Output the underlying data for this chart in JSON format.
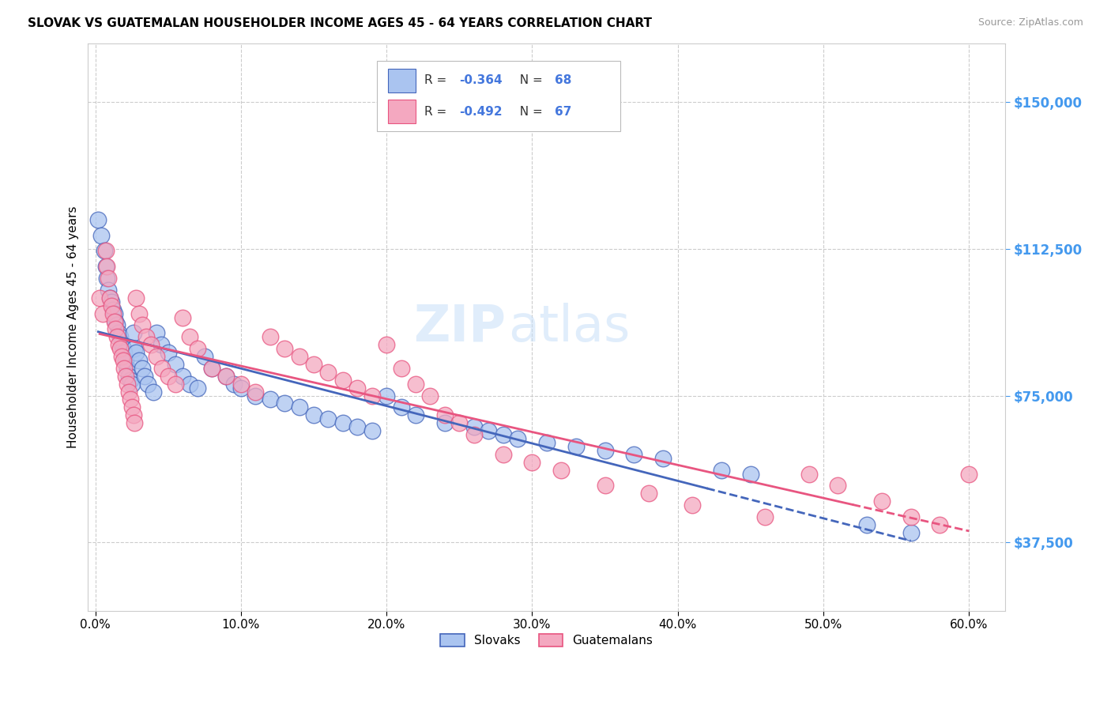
{
  "title": "SLOVAK VS GUATEMALAN HOUSEHOLDER INCOME AGES 45 - 64 YEARS CORRELATION CHART",
  "source": "Source: ZipAtlas.com",
  "ylabel": "Householder Income Ages 45 - 64 years",
  "xlabel_ticks": [
    "0.0%",
    "10.0%",
    "20.0%",
    "30.0%",
    "40.0%",
    "50.0%",
    "60.0%"
  ],
  "xlabel_vals": [
    0.0,
    0.1,
    0.2,
    0.3,
    0.4,
    0.5,
    0.6
  ],
  "yticks": [
    37500,
    75000,
    112500,
    150000
  ],
  "ytick_labels": [
    "$37,500",
    "$75,000",
    "$112,500",
    "$150,000"
  ],
  "xlim": [
    -0.005,
    0.625
  ],
  "ylim": [
    20000,
    165000
  ],
  "slovak_color": "#aac4f0",
  "guatemalan_color": "#f4a8c0",
  "slovak_line_color": "#4466bb",
  "guatemalan_line_color": "#e85580",
  "Slovak_R": "-0.364",
  "Slovak_N": "68",
  "Guatemalan_R": "-0.492",
  "Guatemalan_N": "67",
  "background_color": "#ffffff",
  "grid_color": "#cccccc",
  "watermark_zip": "ZIP",
  "watermark_atlas": "atlas",
  "legend_R_color": "#4466bb",
  "legend_N_color": "#4466bb",
  "slovak_x": [
    0.002,
    0.004,
    0.006,
    0.007,
    0.008,
    0.009,
    0.01,
    0.011,
    0.012,
    0.013,
    0.014,
    0.015,
    0.016,
    0.017,
    0.018,
    0.019,
    0.02,
    0.021,
    0.022,
    0.023,
    0.024,
    0.025,
    0.026,
    0.027,
    0.028,
    0.03,
    0.032,
    0.034,
    0.036,
    0.04,
    0.042,
    0.045,
    0.05,
    0.055,
    0.06,
    0.065,
    0.07,
    0.075,
    0.08,
    0.09,
    0.095,
    0.1,
    0.11,
    0.12,
    0.13,
    0.14,
    0.15,
    0.16,
    0.17,
    0.18,
    0.19,
    0.2,
    0.21,
    0.22,
    0.24,
    0.26,
    0.27,
    0.28,
    0.29,
    0.31,
    0.33,
    0.35,
    0.37,
    0.39,
    0.43,
    0.45,
    0.53,
    0.56
  ],
  "slovak_y": [
    120000,
    116000,
    112000,
    108000,
    105000,
    102000,
    100000,
    99000,
    97000,
    96000,
    94000,
    93000,
    91000,
    90000,
    88000,
    87000,
    86000,
    84000,
    82000,
    80000,
    79000,
    78000,
    91000,
    87000,
    86000,
    84000,
    82000,
    80000,
    78000,
    76000,
    91000,
    88000,
    86000,
    83000,
    80000,
    78000,
    77000,
    85000,
    82000,
    80000,
    78000,
    77000,
    75000,
    74000,
    73000,
    72000,
    70000,
    69000,
    68000,
    67000,
    66000,
    75000,
    72000,
    70000,
    68000,
    67000,
    66000,
    65000,
    64000,
    63000,
    62000,
    61000,
    60000,
    59000,
    56000,
    55000,
    42000,
    40000
  ],
  "guatemalan_x": [
    0.003,
    0.005,
    0.007,
    0.008,
    0.009,
    0.01,
    0.011,
    0.012,
    0.013,
    0.014,
    0.015,
    0.016,
    0.017,
    0.018,
    0.019,
    0.02,
    0.021,
    0.022,
    0.023,
    0.024,
    0.025,
    0.026,
    0.027,
    0.028,
    0.03,
    0.032,
    0.035,
    0.038,
    0.042,
    0.046,
    0.05,
    0.055,
    0.06,
    0.065,
    0.07,
    0.08,
    0.09,
    0.1,
    0.11,
    0.12,
    0.13,
    0.14,
    0.15,
    0.16,
    0.17,
    0.18,
    0.19,
    0.2,
    0.21,
    0.22,
    0.23,
    0.24,
    0.25,
    0.26,
    0.28,
    0.3,
    0.32,
    0.35,
    0.38,
    0.41,
    0.46,
    0.49,
    0.51,
    0.54,
    0.56,
    0.58,
    0.6
  ],
  "guatemalan_y": [
    100000,
    96000,
    112000,
    108000,
    105000,
    100000,
    98000,
    96000,
    94000,
    92000,
    90000,
    88000,
    87000,
    85000,
    84000,
    82000,
    80000,
    78000,
    76000,
    74000,
    72000,
    70000,
    68000,
    100000,
    96000,
    93000,
    90000,
    88000,
    85000,
    82000,
    80000,
    78000,
    95000,
    90000,
    87000,
    82000,
    80000,
    78000,
    76000,
    90000,
    87000,
    85000,
    83000,
    81000,
    79000,
    77000,
    75000,
    88000,
    82000,
    78000,
    75000,
    70000,
    68000,
    65000,
    60000,
    58000,
    56000,
    52000,
    50000,
    47000,
    44000,
    55000,
    52000,
    48000,
    44000,
    42000,
    55000
  ]
}
